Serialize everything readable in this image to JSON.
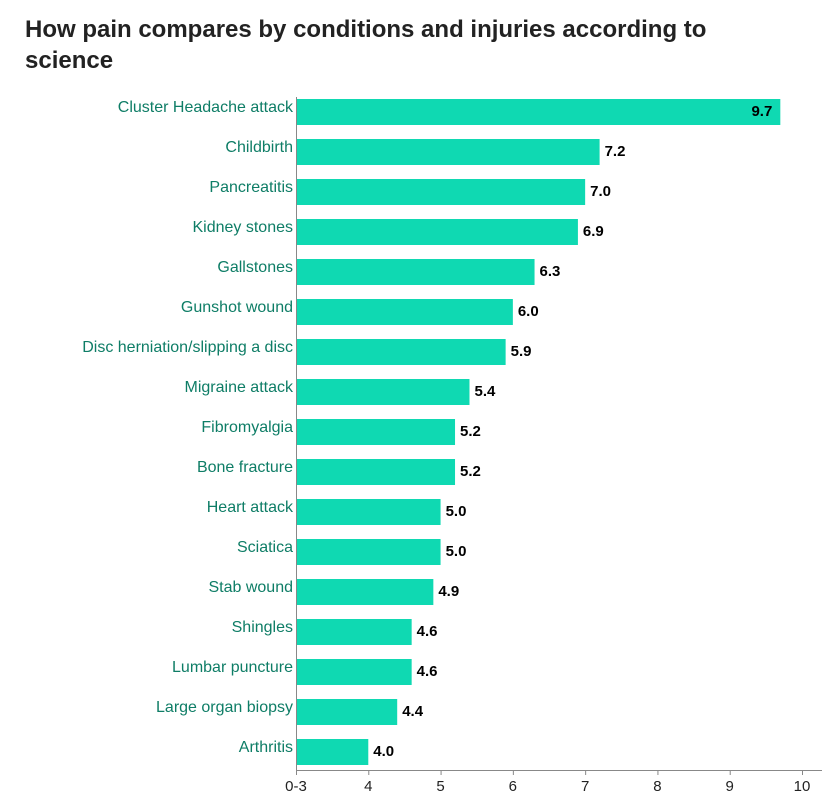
{
  "chart_data": {
    "type": "bar",
    "orientation": "horizontal",
    "title": "How pain compares by conditions and injuries according to science",
    "xlabel": "",
    "ylabel": "",
    "categories": [
      "Cluster Headache attack",
      "Childbirth",
      "Pancreatitis",
      "Kidney stones",
      "Gallstones",
      "Gunshot wound",
      "Disc herniation/slipping a disc",
      "Migraine attack",
      "Fibromyalgia",
      "Bone fracture",
      "Heart attack",
      "Sciatica",
      "Stab wound",
      "Shingles",
      "Lumbar puncture",
      "Large organ biopsy",
      "Arthritis"
    ],
    "values": [
      9.7,
      7.2,
      7.0,
      6.9,
      6.3,
      6.0,
      5.9,
      5.4,
      5.2,
      5.2,
      5.0,
      5.0,
      4.9,
      4.6,
      4.6,
      4.4,
      4.0
    ],
    "value_labels": [
      "9.7",
      "7.2",
      "7.0",
      "6.9",
      "6.3",
      "6.0",
      "5.9",
      "5.4",
      "5.2",
      "5.2",
      "5.0",
      "5.0",
      "4.9",
      "4.6",
      "4.6",
      "4.4",
      "4.0"
    ],
    "xlim": [
      3,
      10
    ],
    "xticks": [
      3,
      4,
      5,
      6,
      7,
      8,
      9,
      10
    ],
    "xtick_labels": [
      "0-3",
      "4",
      "5",
      "6",
      "7",
      "8",
      "9",
      "10"
    ],
    "grid": false,
    "legend": "none",
    "colors": {
      "bar": "#0fd9b2",
      "category_label": "#0e7d66",
      "value_label": "#000000",
      "axis": "#888888",
      "title": "#222222"
    }
  }
}
